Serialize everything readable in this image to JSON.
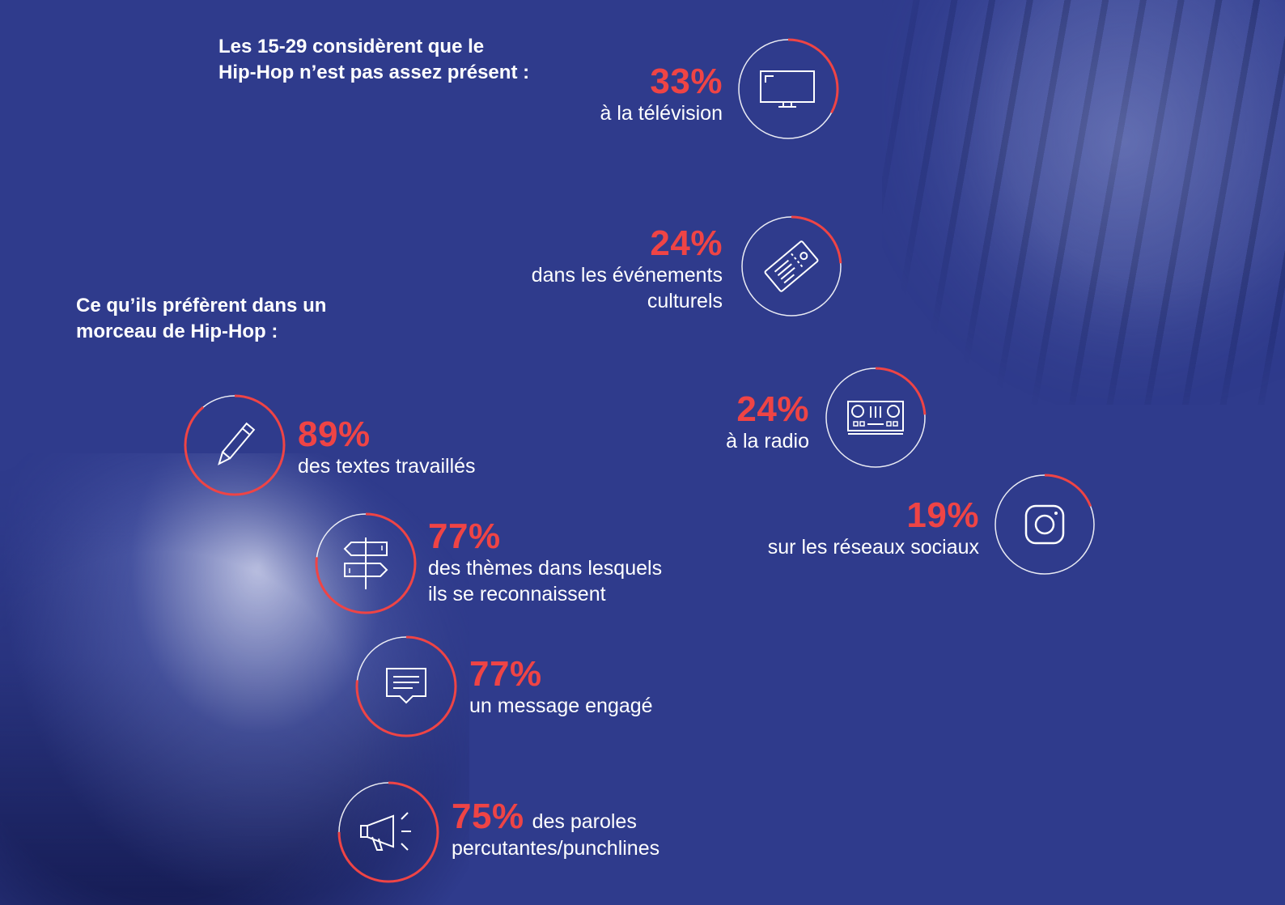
{
  "colors": {
    "background": "#2f3b8c",
    "accent": "#ef4445",
    "text": "#ffffff"
  },
  "section1": {
    "heading_lines": [
      "Les 15-29 considèrent que le",
      "Hip-Hop n’est pas assez présent :"
    ],
    "items": [
      {
        "percent": "33%",
        "value": 33,
        "label_lines": [
          "à la télévision"
        ],
        "icon": "television-icon"
      },
      {
        "percent": "24%",
        "value": 24,
        "label_lines": [
          "dans les événements",
          "culturels"
        ],
        "icon": "ticket-icon"
      },
      {
        "percent": "24%",
        "value": 24,
        "label_lines": [
          "à la radio"
        ],
        "icon": "dj-controller-icon"
      },
      {
        "percent": "19%",
        "value": 19,
        "label_lines": [
          "sur les réseaux sociaux"
        ],
        "icon": "instagram-icon"
      }
    ]
  },
  "section2": {
    "heading_lines": [
      "Ce qu’ils préfèrent dans un",
      "morceau de Hip-Hop :"
    ],
    "items": [
      {
        "percent": "89%",
        "value": 89,
        "label_lines": [
          "des textes travaillés"
        ],
        "icon": "pencil-icon"
      },
      {
        "percent": "77%",
        "value": 77,
        "label_lines": [
          "des thèmes dans lesquels",
          "ils se reconnaissent"
        ],
        "icon": "signpost-icon"
      },
      {
        "percent": "77%",
        "value": 77,
        "label_lines": [
          "un message engagé"
        ],
        "icon": "chat-bubble-icon"
      },
      {
        "percent": "75%",
        "value": 75,
        "label_lines": [
          "des paroles",
          "percutantes/punchlines"
        ],
        "icon": "megaphone-icon"
      }
    ]
  }
}
